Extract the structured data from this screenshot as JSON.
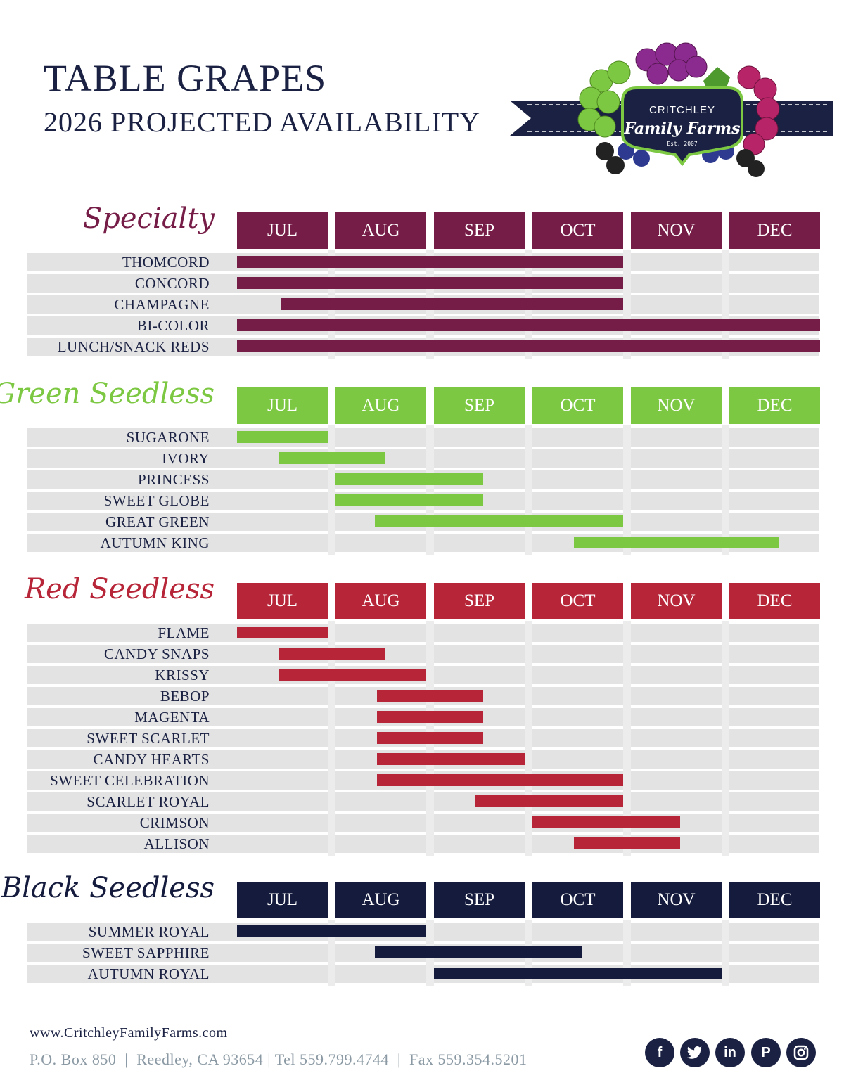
{
  "header": {
    "title": "TABLE GRAPES",
    "subtitle": "2026 PROJECTED AVAILABILITY"
  },
  "logo": {
    "line1": "CRITCHLEY",
    "line2": "Family Farms",
    "line3": "Est. 2007"
  },
  "colors": {
    "Specialty": "#761d47",
    "Green Seedless": "#7dc843",
    "Red Seedless": "#b72538",
    "Black Seedless": "#141b3c",
    "navy": "#1a2142"
  },
  "chart_data": {
    "type": "gantt",
    "months": [
      "JUL",
      "AUG",
      "SEP",
      "OCT",
      "NOV",
      "DEC"
    ],
    "groups": [
      {
        "name": "Specialty",
        "varieties": [
          {
            "name": "THOMCORD",
            "start": 0.0,
            "end": 3.92
          },
          {
            "name": "CONCORD",
            "start": 0.0,
            "end": 3.92
          },
          {
            "name": "CHAMPAGNE",
            "start": 0.45,
            "end": 3.92
          },
          {
            "name": "BI-COLOR",
            "start": 0.0,
            "end": 6.0
          },
          {
            "name": "LUNCH/SNACK REDS",
            "start": 0.0,
            "end": 6.0
          }
        ]
      },
      {
        "name": "Green Seedless",
        "varieties": [
          {
            "name": "SUGARONE",
            "start": 0.0,
            "end": 0.92
          },
          {
            "name": "IVORY",
            "start": 0.42,
            "end": 1.5
          },
          {
            "name": "PRINCESS",
            "start": 1.0,
            "end": 2.5
          },
          {
            "name": "SWEET GLOBE",
            "start": 1.0,
            "end": 2.5
          },
          {
            "name": "GREAT GREEN",
            "start": 1.4,
            "end": 3.92
          },
          {
            "name": "AUTUMN KING",
            "start": 3.42,
            "end": 5.5
          }
        ]
      },
      {
        "name": "Red Seedless",
        "varieties": [
          {
            "name": "FLAME",
            "start": 0.0,
            "end": 0.92
          },
          {
            "name": "CANDY SNAPS",
            "start": 0.42,
            "end": 1.5
          },
          {
            "name": "KRISSY",
            "start": 0.42,
            "end": 1.92
          },
          {
            "name": "BEBOP",
            "start": 1.42,
            "end": 2.5
          },
          {
            "name": "MAGENTA",
            "start": 1.42,
            "end": 2.5
          },
          {
            "name": "SWEET SCARLET",
            "start": 1.42,
            "end": 2.5
          },
          {
            "name": "CANDY HEARTS",
            "start": 1.42,
            "end": 2.92
          },
          {
            "name": "SWEET CELEBRATION",
            "start": 1.42,
            "end": 3.92
          },
          {
            "name": "SCARLET ROYAL",
            "start": 2.42,
            "end": 3.92
          },
          {
            "name": "CRIMSON",
            "start": 3.0,
            "end": 4.5
          },
          {
            "name": "ALLISON",
            "start": 3.42,
            "end": 4.5
          }
        ]
      },
      {
        "name": "Black Seedless",
        "varieties": [
          {
            "name": "SUMMER ROYAL",
            "start": 0.0,
            "end": 1.92
          },
          {
            "name": "SWEET SAPPHIRE",
            "start": 1.4,
            "end": 3.5
          },
          {
            "name": "AUTUMN ROYAL",
            "start": 2.0,
            "end": 4.92
          }
        ]
      }
    ]
  },
  "footer": {
    "url": "www.CritchleyFamilyFarms.com",
    "address": "P.O. Box 850  |  Reedley, CA 93654 | Tel 559.799.4744  |  Fax 559.354.5201",
    "social_icons": [
      "facebook-icon",
      "twitter-icon",
      "linkedin-icon",
      "pinterest-icon",
      "instagram-icon"
    ]
  }
}
